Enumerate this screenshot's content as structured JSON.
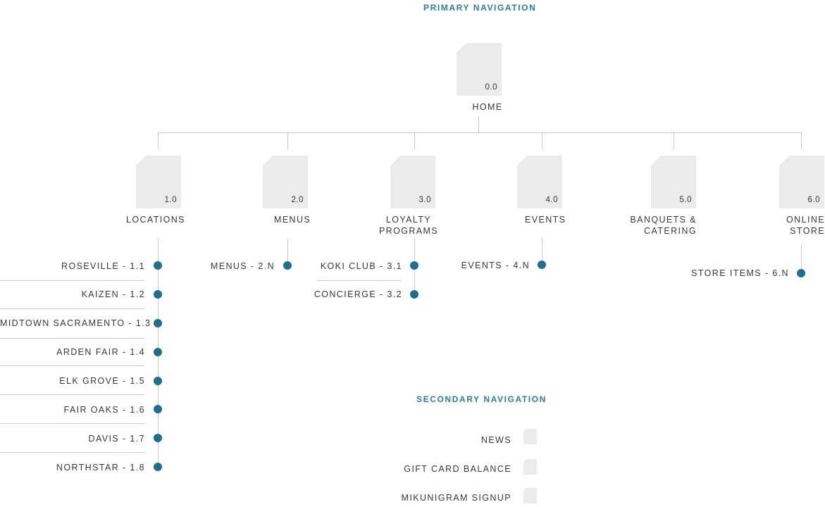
{
  "primary_title": "PRIMARY NAVIGATION",
  "home": {
    "number": "0.0",
    "label": "HOME"
  },
  "sections": [
    {
      "number": "1.0",
      "label": [
        "LOCATIONS"
      ]
    },
    {
      "number": "2.0",
      "label": [
        "MENUS"
      ]
    },
    {
      "number": "3.0",
      "label": [
        "LOYALTY",
        "PROGRAMS"
      ]
    },
    {
      "number": "4.0",
      "label": [
        "EVENTS"
      ]
    },
    {
      "number": "5.0",
      "label": [
        "BANQUETS &",
        "CATERING"
      ]
    },
    {
      "number": "6.0",
      "label": [
        "ONLINE",
        "STORE"
      ]
    }
  ],
  "subpages": {
    "locations": [
      "ROSEVILLE - 1.1",
      "KAIZEN - 1.2",
      "MIDTOWN SACRAMENTO - 1.3",
      "ARDEN FAIR - 1.4",
      "ELK GROVE - 1.5",
      "FAIR OAKS - 1.6",
      "DAVIS - 1.7",
      "NORTHSTAR - 1.8"
    ],
    "menus": [
      "MENUS - 2.N"
    ],
    "loyalty": [
      "KOKI CLUB - 3.1",
      "CONCIERGE - 3.2"
    ],
    "events": [
      "EVENTS - 4.N"
    ],
    "store": [
      "STORE ITEMS - 6.N"
    ]
  },
  "secondary_title": "SECONDARY NAVIGATION",
  "secondary_items": [
    "NEWS",
    "GIFT CARD BALANCE",
    "MIKUNIGRAM SIGNUP"
  ],
  "colors": {
    "accent": "#2a7f98",
    "dot": "#1f6e8c",
    "page": "#ebebeb",
    "line": "#c8c8c8",
    "text": "#333a3d"
  }
}
